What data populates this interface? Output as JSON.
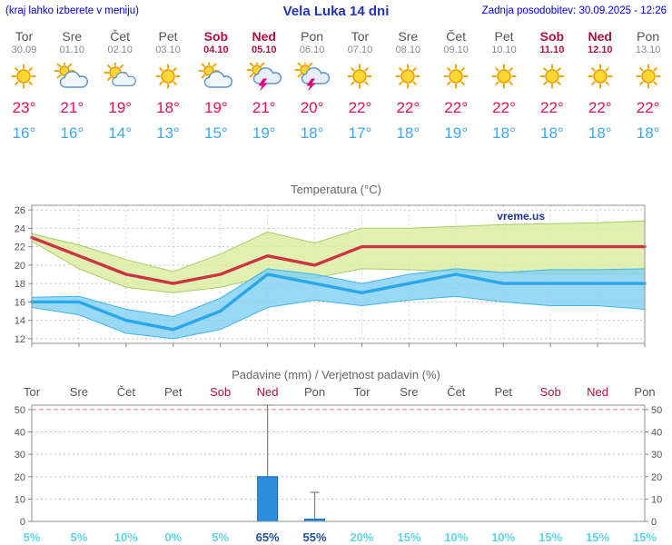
{
  "header": {
    "left_note": "(kraj lahko izberete v meniju)",
    "title": "Vela Luka 14 dni",
    "updated": "Zadnja posodobitev: 30.09.2025 - 12:26"
  },
  "days": [
    {
      "name": "Tor",
      "date": "30.09",
      "weekend": false,
      "icon": "sunny",
      "tmax": "23°",
      "tmin": "16°"
    },
    {
      "name": "Sre",
      "date": "01.10",
      "weekend": false,
      "icon": "mostly-cloudy",
      "tmax": "21°",
      "tmin": "16°"
    },
    {
      "name": "Čet",
      "date": "02.10",
      "weekend": false,
      "icon": "partly-cloudy",
      "tmax": "19°",
      "tmin": "14°"
    },
    {
      "name": "Pet",
      "date": "03.10",
      "weekend": false,
      "icon": "sunny",
      "tmax": "18°",
      "tmin": "13°"
    },
    {
      "name": "Sob",
      "date": "04.10",
      "weekend": true,
      "icon": "mostly-cloudy",
      "tmax": "19°",
      "tmin": "15°"
    },
    {
      "name": "Ned",
      "date": "05.10",
      "weekend": true,
      "icon": "thunderstorm",
      "tmax": "21°",
      "tmin": "19°"
    },
    {
      "name": "Pon",
      "date": "06.10",
      "weekend": false,
      "icon": "thunderstorm",
      "tmax": "20°",
      "tmin": "18°"
    },
    {
      "name": "Tor",
      "date": "07.10",
      "weekend": false,
      "icon": "sunny",
      "tmax": "22°",
      "tmin": "17°"
    },
    {
      "name": "Sre",
      "date": "08.10",
      "weekend": false,
      "icon": "sunny",
      "tmax": "22°",
      "tmin": "18°"
    },
    {
      "name": "Čet",
      "date": "09.10",
      "weekend": false,
      "icon": "sunny",
      "tmax": "22°",
      "tmin": "19°"
    },
    {
      "name": "Pet",
      "date": "10.10",
      "weekend": false,
      "icon": "sunny",
      "tmax": "22°",
      "tmin": "18°"
    },
    {
      "name": "Sob",
      "date": "11.10",
      "weekend": true,
      "icon": "sunny",
      "tmax": "22°",
      "tmin": "18°"
    },
    {
      "name": "Ned",
      "date": "12.10",
      "weekend": true,
      "icon": "sunny",
      "tmax": "22°",
      "tmin": "18°"
    },
    {
      "name": "Pon",
      "date": "13.10",
      "weekend": false,
      "icon": "sunny",
      "tmax": "22°",
      "tmin": "18°"
    }
  ],
  "chart_data": [
    {
      "type": "line",
      "title": "Temperatura (°C)",
      "watermark": "vreme.us",
      "categories": [
        "Tor",
        "Sre",
        "Čet",
        "Pet",
        "Sob",
        "Ned",
        "Pon",
        "Tor",
        "Sre",
        "Čet",
        "Pet",
        "Sob",
        "Ned",
        "Pon"
      ],
      "ylim": [
        11.5,
        26.5
      ],
      "yticks": [
        12,
        14,
        16,
        18,
        20,
        22,
        24,
        26
      ],
      "series": [
        {
          "name": "najvišja temperatura",
          "color": "#cc3344",
          "values": [
            23,
            21,
            19,
            18,
            19,
            21,
            20,
            22,
            22,
            22,
            22,
            22,
            22,
            22
          ]
        },
        {
          "name": "najnižja temperatura",
          "color": "#2aa7e8",
          "values": [
            16,
            16,
            14,
            13,
            15,
            19,
            18,
            17,
            18,
            19,
            18,
            18,
            18,
            18
          ]
        }
      ],
      "bands": [
        {
          "name": "razpon najvišje",
          "fill": "#d9ec9e",
          "edge": "#a9cc66",
          "upper": [
            23.4,
            22.2,
            20.6,
            19.3,
            21.2,
            23.6,
            22.4,
            24.0,
            24.0,
            24.2,
            24.4,
            24.5,
            24.6,
            24.8
          ],
          "lower": [
            22.6,
            19.6,
            17.6,
            17.0,
            17.6,
            18.8,
            18.6,
            19.6,
            19.5,
            19.3,
            19.2,
            19.0,
            19.0,
            19.0
          ]
        },
        {
          "name": "razpon najnižje",
          "fill": "#7fd0f2",
          "edge": "#3fb4ea",
          "upper": [
            16.5,
            16.6,
            15.2,
            14.4,
            16.4,
            19.6,
            19.0,
            18.0,
            19.0,
            19.6,
            19.2,
            19.5,
            19.5,
            19.6
          ],
          "lower": [
            15.4,
            14.6,
            12.6,
            12.0,
            13.0,
            15.4,
            16.2,
            15.6,
            16.2,
            16.6,
            16.0,
            15.6,
            15.6,
            15.2
          ]
        }
      ]
    },
    {
      "type": "bar",
      "title": "Padavine (mm) / Verjetnost padavin (%)",
      "day_labels": [
        "Tor",
        "Sre",
        "Čet",
        "Pet",
        "Sob",
        "Ned",
        "Pon",
        "Tor",
        "Sre",
        "Čet",
        "Pet",
        "Sob",
        "Ned",
        "Pon"
      ],
      "weekend_flags": [
        false,
        false,
        false,
        false,
        true,
        true,
        false,
        false,
        false,
        false,
        false,
        true,
        true,
        false
      ],
      "ylim": [
        0,
        52
      ],
      "yticks": [
        0,
        10,
        20,
        30,
        40,
        50
      ],
      "bars_mm": [
        0,
        0,
        0,
        0,
        0,
        20,
        1,
        0,
        0,
        0,
        0,
        0,
        0,
        0
      ],
      "whisker_max": [
        0,
        0,
        0,
        0,
        0,
        52,
        13,
        0,
        0,
        0,
        0,
        0,
        0,
        0
      ],
      "probabilities": [
        "5%",
        "5%",
        "10%",
        "0%",
        "5%",
        "65%",
        "55%",
        "20%",
        "15%",
        "10%",
        "10%",
        "15%",
        "15%",
        "15%"
      ],
      "probability_emphasis": [
        false,
        false,
        false,
        false,
        false,
        true,
        true,
        false,
        false,
        false,
        false,
        false,
        false,
        false
      ]
    }
  ],
  "colors": {
    "header_blue": "#0000cc",
    "title_blue": "#2233bb",
    "weekend_red": "#aa1144",
    "tmax_red": "#e01150",
    "tmin_blue": "#3fa7ee",
    "bar_blue": "#2b8fdd",
    "prob_cyan": "#5fd6e4",
    "prob_navy": "#1d4f9a"
  }
}
